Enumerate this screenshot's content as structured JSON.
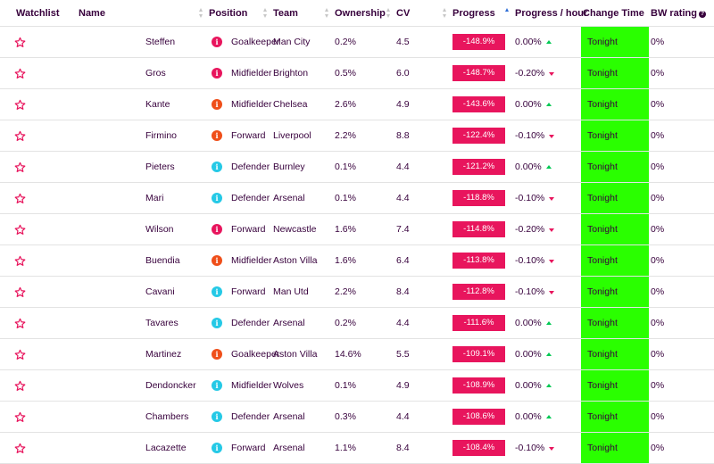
{
  "header": {
    "watchlist": "Watchlist",
    "name": "Name",
    "position": "Position",
    "team": "Team",
    "ownership": "Ownership",
    "cv": "CV",
    "progress": "Progress",
    "progress_hour": "Progress / hour",
    "change_time": "Change Time",
    "bw_rating": "BW rating"
  },
  "colors": {
    "progress_bar": "#e8155d",
    "change_time_bg": "#2aff00",
    "trend_up": "#00c853",
    "trend_down": "#e8155d",
    "badge_pink": "#e8155d",
    "badge_orange": "#ef4f1a",
    "badge_cyan": "#25c9e6"
  },
  "rows": [
    {
      "name": "Steffen",
      "position": "Goalkeeper",
      "badge": "pink",
      "team": "Man City",
      "ownership": "0.2%",
      "cv": "4.5",
      "progress": "-148.9%",
      "pph": "0.00%",
      "trend": "up",
      "change_time": "Tonight",
      "bw": "0%"
    },
    {
      "name": "Gros",
      "position": "Midfielder",
      "badge": "pink",
      "team": "Brighton",
      "ownership": "0.5%",
      "cv": "6.0",
      "progress": "-148.7%",
      "pph": "-0.20%",
      "trend": "down",
      "change_time": "Tonight",
      "bw": "0%"
    },
    {
      "name": "Kante",
      "position": "Midfielder",
      "badge": "orange",
      "team": "Chelsea",
      "ownership": "2.6%",
      "cv": "4.9",
      "progress": "-143.6%",
      "pph": "0.00%",
      "trend": "up",
      "change_time": "Tonight",
      "bw": "0%"
    },
    {
      "name": "Firmino",
      "position": "Forward",
      "badge": "orange",
      "team": "Liverpool",
      "ownership": "2.2%",
      "cv": "8.8",
      "progress": "-122.4%",
      "pph": "-0.10%",
      "trend": "down",
      "change_time": "Tonight",
      "bw": "0%"
    },
    {
      "name": "Pieters",
      "position": "Defender",
      "badge": "cyan",
      "team": "Burnley",
      "ownership": "0.1%",
      "cv": "4.4",
      "progress": "-121.2%",
      "pph": "0.00%",
      "trend": "up",
      "change_time": "Tonight",
      "bw": "0%"
    },
    {
      "name": "Mari",
      "position": "Defender",
      "badge": "cyan",
      "team": "Arsenal",
      "ownership": "0.1%",
      "cv": "4.4",
      "progress": "-118.8%",
      "pph": "-0.10%",
      "trend": "down",
      "change_time": "Tonight",
      "bw": "0%"
    },
    {
      "name": "Wilson",
      "position": "Forward",
      "badge": "pink",
      "team": "Newcastle",
      "ownership": "1.6%",
      "cv": "7.4",
      "progress": "-114.8%",
      "pph": "-0.20%",
      "trend": "down",
      "change_time": "Tonight",
      "bw": "0%"
    },
    {
      "name": "Buendia",
      "position": "Midfielder",
      "badge": "orange",
      "team": "Aston Villa",
      "ownership": "1.6%",
      "cv": "6.4",
      "progress": "-113.8%",
      "pph": "-0.10%",
      "trend": "down",
      "change_time": "Tonight",
      "bw": "0%"
    },
    {
      "name": "Cavani",
      "position": "Forward",
      "badge": "cyan",
      "team": "Man Utd",
      "ownership": "2.2%",
      "cv": "8.4",
      "progress": "-112.8%",
      "pph": "-0.10%",
      "trend": "down",
      "change_time": "Tonight",
      "bw": "0%"
    },
    {
      "name": "Tavares",
      "position": "Defender",
      "badge": "cyan",
      "team": "Arsenal",
      "ownership": "0.2%",
      "cv": "4.4",
      "progress": "-111.6%",
      "pph": "0.00%",
      "trend": "up",
      "change_time": "Tonight",
      "bw": "0%"
    },
    {
      "name": "Martinez",
      "position": "Goalkeeper",
      "badge": "orange",
      "team": "Aston Villa",
      "ownership": "14.6%",
      "cv": "5.5",
      "progress": "-109.1%",
      "pph": "0.00%",
      "trend": "up",
      "change_time": "Tonight",
      "bw": "0%"
    },
    {
      "name": "Dendoncker",
      "position": "Midfielder",
      "badge": "cyan",
      "team": "Wolves",
      "ownership": "0.1%",
      "cv": "4.9",
      "progress": "-108.9%",
      "pph": "0.00%",
      "trend": "up",
      "change_time": "Tonight",
      "bw": "0%"
    },
    {
      "name": "Chambers",
      "position": "Defender",
      "badge": "cyan",
      "team": "Arsenal",
      "ownership": "0.3%",
      "cv": "4.4",
      "progress": "-108.6%",
      "pph": "0.00%",
      "trend": "up",
      "change_time": "Tonight",
      "bw": "0%"
    },
    {
      "name": "Lacazette",
      "position": "Forward",
      "badge": "cyan",
      "team": "Arsenal",
      "ownership": "1.1%",
      "cv": "8.4",
      "progress": "-108.4%",
      "pph": "-0.10%",
      "trend": "down",
      "change_time": "Tonight",
      "bw": "0%"
    }
  ]
}
